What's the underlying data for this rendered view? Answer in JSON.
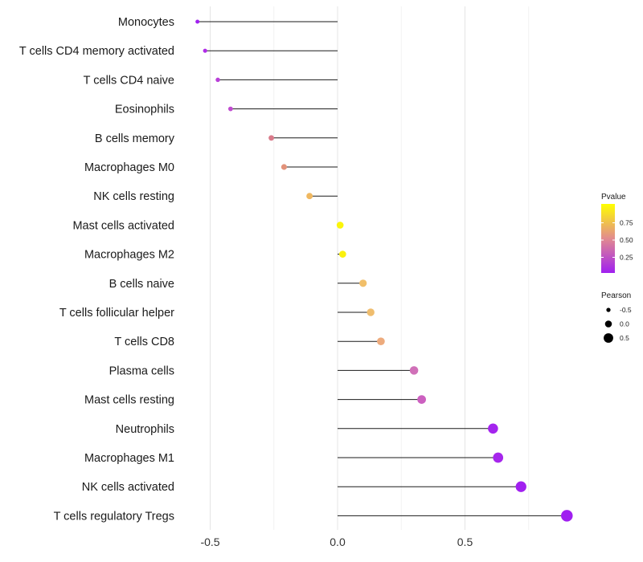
{
  "chart_data": {
    "type": "lollipop",
    "title": "",
    "xlabel": "",
    "ylabel": "",
    "xlim": [
      -0.6,
      1.0
    ],
    "x_ticks": [
      -0.5,
      0.0,
      0.5
    ],
    "x_tick_labels": [
      "-0.5",
      "0.0",
      "0.5"
    ],
    "grid": true,
    "points": [
      {
        "cell": "Monocytes",
        "pearson": -0.55,
        "pvalue": 0.02,
        "color": "#a020f0"
      },
      {
        "cell": "T cells CD4 memory activated",
        "pearson": -0.52,
        "pvalue": 0.05,
        "color": "#b02ce8"
      },
      {
        "cell": "T cells CD4 naive",
        "pearson": -0.47,
        "pvalue": 0.1,
        "color": "#b93fd8"
      },
      {
        "cell": "Eosinophils",
        "pearson": -0.42,
        "pvalue": 0.15,
        "color": "#c04bd0"
      },
      {
        "cell": "B cells memory",
        "pearson": -0.26,
        "pvalue": 0.45,
        "color": "#d97a8a"
      },
      {
        "cell": "Macrophages M0",
        "pearson": -0.21,
        "pvalue": 0.55,
        "color": "#e2927a"
      },
      {
        "cell": "NK cells resting",
        "pearson": -0.11,
        "pvalue": 0.75,
        "color": "#f0b860"
      },
      {
        "cell": "Mast cells activated",
        "pearson": 0.01,
        "pvalue": 0.97,
        "color": "#fbf50a"
      },
      {
        "cell": "Macrophages M2",
        "pearson": 0.02,
        "pvalue": 0.96,
        "color": "#faf00e"
      },
      {
        "cell": "B cells naive",
        "pearson": 0.1,
        "pvalue": 0.72,
        "color": "#f1bf6a"
      },
      {
        "cell": "T cells follicular helper",
        "pearson": 0.13,
        "pvalue": 0.7,
        "color": "#efbd6e"
      },
      {
        "cell": "T cells CD8",
        "pearson": 0.17,
        "pvalue": 0.62,
        "color": "#edab7d"
      },
      {
        "cell": "Plasma cells",
        "pearson": 0.3,
        "pvalue": 0.32,
        "color": "#d070b8"
      },
      {
        "cell": "Mast cells resting",
        "pearson": 0.33,
        "pvalue": 0.3,
        "color": "#cc60c0"
      },
      {
        "cell": "Neutrophils",
        "pearson": 0.61,
        "pvalue": 0.02,
        "color": "#a424ee"
      },
      {
        "cell": "Macrophages M1",
        "pearson": 0.63,
        "pvalue": 0.03,
        "color": "#a626ec"
      },
      {
        "cell": "NK cells activated",
        "pearson": 0.72,
        "pvalue": 0.01,
        "color": "#a120f0"
      },
      {
        "cell": "T cells regulatory  Tregs",
        "pearson": 0.9,
        "pvalue": 0.005,
        "color": "#a01ff0"
      }
    ],
    "legends": {
      "color": {
        "title": "Pvalue",
        "range": [
          0.0,
          1.0
        ],
        "ticks": [
          0.75,
          0.5,
          0.25
        ],
        "tick_labels": [
          "0.75",
          "0.50",
          "0.25"
        ],
        "low_color": "#a020f0",
        "high_color": "#ffff00"
      },
      "size": {
        "title": "Pearson",
        "values": [
          -0.5,
          0.0,
          0.5
        ],
        "labels": [
          "-0.5",
          "0.0",
          "0.5"
        ]
      }
    }
  }
}
